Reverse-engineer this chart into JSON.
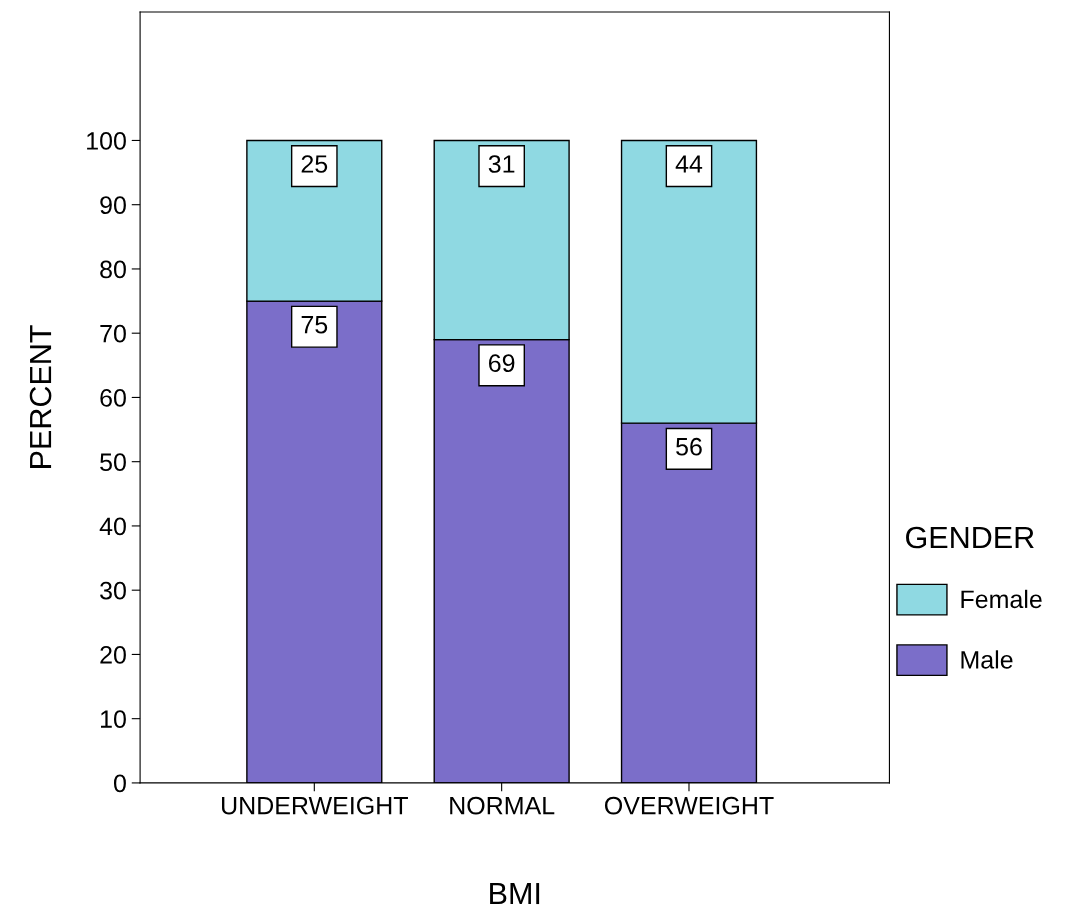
{
  "chart_data": {
    "type": "bar",
    "stacked": true,
    "xlabel": "BMI",
    "ylabel": "PERCENT",
    "legend_title": "GENDER",
    "categories": [
      "UNDERWEIGHT",
      "NORMAL",
      "OVERWEIGHT"
    ],
    "series": [
      {
        "name": "Male",
        "color": "#7b6ec9",
        "values": [
          75,
          69,
          56
        ]
      },
      {
        "name": "Female",
        "color": "#8fd9e2",
        "values": [
          25,
          31,
          44
        ]
      }
    ],
    "ylim": [
      0,
      120
    ],
    "yticks": [
      0,
      10,
      20,
      30,
      40,
      50,
      60,
      70,
      80,
      90,
      100
    ],
    "grid": false,
    "legend": "right",
    "data_labels": true
  }
}
